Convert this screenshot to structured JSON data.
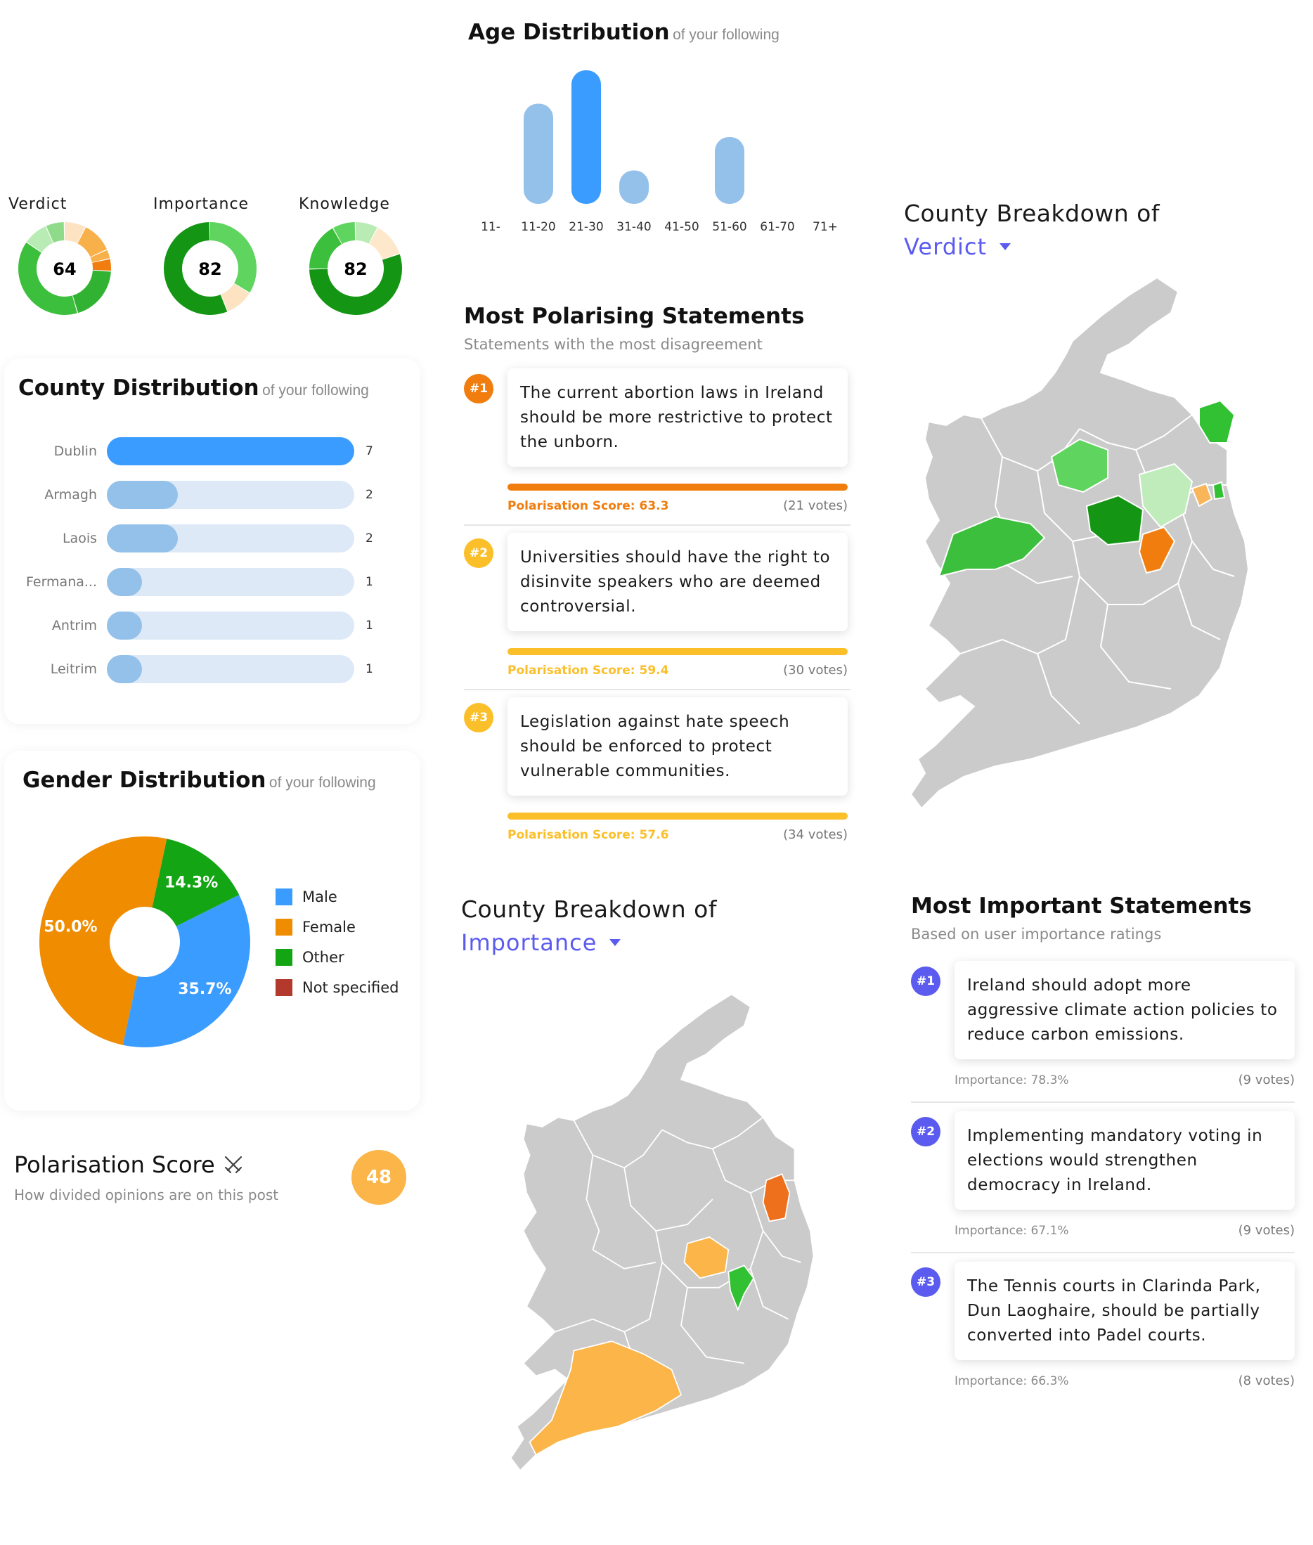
{
  "gauges": [
    {
      "label": "Verdict",
      "value": "64"
    },
    {
      "label": "Importance",
      "value": "82"
    },
    {
      "label": "Knowledge",
      "value": "82"
    }
  ],
  "age": {
    "title": "Age Distribution",
    "subtitle": "of your following"
  },
  "county_distribution": {
    "title": "County Distribution",
    "subtitle": "of your following",
    "rows": [
      {
        "name": "Dublin",
        "count": "7"
      },
      {
        "name": "Armagh",
        "count": "2"
      },
      {
        "name": "Laois",
        "count": "2"
      },
      {
        "name": "Fermana...",
        "count": "1"
      },
      {
        "name": "Antrim",
        "count": "1"
      },
      {
        "name": "Leitrim",
        "count": "1"
      }
    ]
  },
  "gender": {
    "title": "Gender Distribution",
    "subtitle": "of your following",
    "legend": [
      "Male",
      "Female",
      "Other",
      "Not specified"
    ],
    "slice_labels": [
      "50.0%",
      "14.3%",
      "35.7%"
    ]
  },
  "polarisation": {
    "title": "Polarisation Score",
    "icon": "crossed-swords-icon",
    "subtitle": "How divided opinions are on this post",
    "value": "48"
  },
  "polarising": {
    "title": "Most Polarising Statements",
    "subtitle": "Statements with the most disagreement",
    "items": [
      {
        "rank": "#1",
        "text": "The current abortion laws in Ireland should be more restrictive to protect the unborn.",
        "score": "Polarisation Score: 63.3",
        "votes": "(21 votes)",
        "color": "#f07d0e"
      },
      {
        "rank": "#2",
        "text": "Universities should have the right to disinvite speakers who are deemed controversial.",
        "score": "Polarisation Score: 59.4",
        "votes": "(30 votes)",
        "color": "#fbbf2a"
      },
      {
        "rank": "#3",
        "text": "Legislation against hate speech should be enforced to protect vulnerable communities.",
        "score": "Polarisation Score: 57.6",
        "votes": "(34 votes)",
        "color": "#fbbf2a"
      }
    ]
  },
  "breakdown_verdict": {
    "title": "County Breakdown of",
    "selected": "Verdict"
  },
  "breakdown_importance": {
    "title": "County Breakdown of",
    "selected": "Importance"
  },
  "important": {
    "title": "Most Important Statements",
    "subtitle": "Based on user importance ratings",
    "items": [
      {
        "rank": "#1",
        "text": "Ireland should adopt more aggressive climate action policies to reduce carbon emissions.",
        "importance": "Importance: 78.3%",
        "votes": "(9 votes)"
      },
      {
        "rank": "#2",
        "text": "Implementing mandatory voting in elections would strengthen democracy in Ireland.",
        "importance": "Importance: 67.1%",
        "votes": "(9 votes)"
      },
      {
        "rank": "#3",
        "text": "The Tennis courts in Clarinda Park, Dun Laoghaire, should be partially converted into Padel courts.",
        "importance": "Importance: 66.3%",
        "votes": "(8 votes)"
      }
    ]
  },
  "colors": {
    "accent_purple": "#5b5bf0",
    "bar_blue": "#3b9cff",
    "bar_light_blue": "#94c1ea",
    "orange": "#f07d0e",
    "amber": "#fbbf2a",
    "green_dark": "#22a322",
    "green_mid": "#3cbf3c",
    "green_light": "#b8ecb4",
    "map_grey": "#cbcbcb"
  },
  "chart_data": [
    {
      "type": "bar",
      "categories": [
        "11-",
        "11-20",
        "21-30",
        "31-40",
        "41-50",
        "51-60",
        "61-70",
        "71+"
      ],
      "values": [
        0,
        3,
        4,
        1,
        0,
        2,
        0,
        0
      ]
    },
    {
      "type": "bar",
      "categories": [
        "Dublin",
        "Armagh",
        "Laois",
        "Fermana...",
        "Antrim",
        "Leitrim"
      ],
      "values": [
        7,
        2,
        2,
        1,
        1,
        1
      ]
    },
    {
      "type": "pie",
      "categories": [
        "Male",
        "Female",
        "Other",
        "Not specified"
      ],
      "values": [
        35.7,
        50.0,
        14.3,
        0
      ],
      "colors": [
        "#3b9cff",
        "#f08c00",
        "#14a514",
        "#b2392b"
      ]
    }
  ]
}
